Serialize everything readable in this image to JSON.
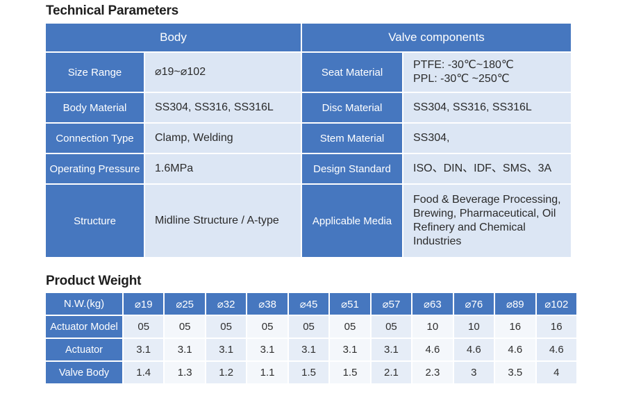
{
  "technical": {
    "title": "Technical Parameters",
    "headers": [
      "Body",
      "Valve components"
    ],
    "rows": [
      {
        "label_left": "Size Range",
        "value_left": [
          "⌀19~⌀102"
        ],
        "label_right": "Seat Material",
        "value_right": [
          "PTFE: -30℃~180℃",
          "PPL:  -30℃ ~250℃"
        ]
      },
      {
        "label_left": "Body Material",
        "value_left": [
          "SS304, SS316, SS316L"
        ],
        "label_right": "Disc Material",
        "value_right": [
          "SS304, SS316, SS316L"
        ]
      },
      {
        "label_left": "Connection Type",
        "value_left": [
          "Clamp, Welding"
        ],
        "label_right": "Stem Material",
        "value_right": [
          "SS304,"
        ]
      },
      {
        "label_left": "Operating Pressure",
        "value_left": [
          "1.6MPa"
        ],
        "label_right": "Design Standard",
        "value_right": [
          "ISO、DIN、IDF、SMS、3A"
        ]
      },
      {
        "label_left": "Structure",
        "value_left": [
          "Midline Structure / A-type"
        ],
        "label_right": "Applicable Media",
        "value_right": [
          "Food & Beverage Processing,",
          "Brewing, Pharmaceutical, Oil",
          "Refinery and Chemical",
          "Industries"
        ]
      }
    ]
  },
  "weight": {
    "title": "Product Weight",
    "header_label": "N.W.(kg)",
    "sizes": [
      "⌀19",
      "⌀25",
      "⌀32",
      "⌀38",
      "⌀45",
      "⌀51",
      "⌀57",
      "⌀63",
      "⌀76",
      "⌀89",
      "⌀102"
    ],
    "rows": [
      {
        "label": "Actuator Model",
        "values": [
          "05",
          "05",
          "05",
          "05",
          "05",
          "05",
          "05",
          "10",
          "10",
          "16",
          "16"
        ]
      },
      {
        "label": "Actuator",
        "values": [
          "3.1",
          "3.1",
          "3.1",
          "3.1",
          "3.1",
          "3.1",
          "3.1",
          "4.6",
          "4.6",
          "4.6",
          "4.6"
        ]
      },
      {
        "label": "Valve Body",
        "values": [
          "1.4",
          "1.3",
          "1.2",
          "1.1",
          "1.5",
          "1.5",
          "2.1",
          "2.3",
          "3",
          "3.5",
          "4"
        ]
      }
    ]
  }
}
